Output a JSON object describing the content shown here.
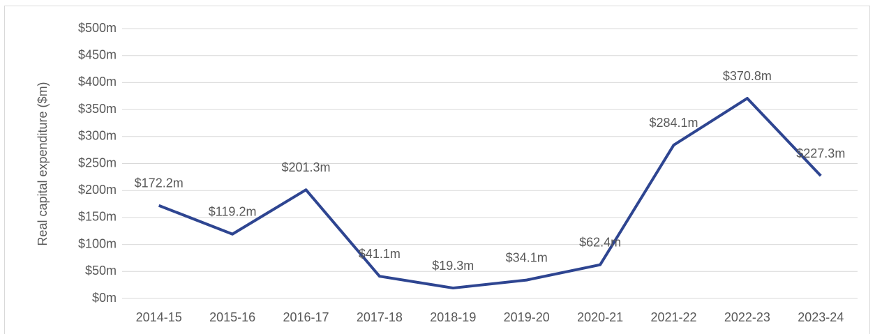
{
  "chart_data": {
    "type": "line",
    "y_axis_label": "Real capital expenditure ($m)",
    "categories": [
      "2014-15",
      "2015-16",
      "2016-17",
      "2017-18",
      "2018-19",
      "2019-20",
      "2020-21",
      "2021-22",
      "2022-23",
      "2023-24"
    ],
    "series": [
      {
        "name": "Real capital expenditure",
        "color": "#2e4591",
        "values": [
          172.2,
          119.2,
          201.3,
          41.1,
          19.3,
          34.1,
          62.4,
          284.1,
          370.8,
          227.3
        ],
        "value_labels": [
          "$172.2m",
          "$119.2m",
          "$201.3m",
          "$41.1m",
          "$19.3m",
          "$34.1m",
          "$62.4m",
          "$284.1m",
          "$370.8m",
          "$227.3m"
        ]
      }
    ],
    "ylim": [
      0,
      500
    ],
    "yticks": [
      {
        "value": 0,
        "label": "$0m"
      },
      {
        "value": 50,
        "label": "$50m"
      },
      {
        "value": 100,
        "label": "$100m"
      },
      {
        "value": 150,
        "label": "$150m"
      },
      {
        "value": 200,
        "label": "$200m"
      },
      {
        "value": 250,
        "label": "$250m"
      },
      {
        "value": 300,
        "label": "$300m"
      },
      {
        "value": 350,
        "label": "$350m"
      },
      {
        "value": 400,
        "label": "$400m"
      },
      {
        "value": 450,
        "label": "$450m"
      },
      {
        "value": 500,
        "label": "$500m"
      }
    ],
    "grid": true
  }
}
